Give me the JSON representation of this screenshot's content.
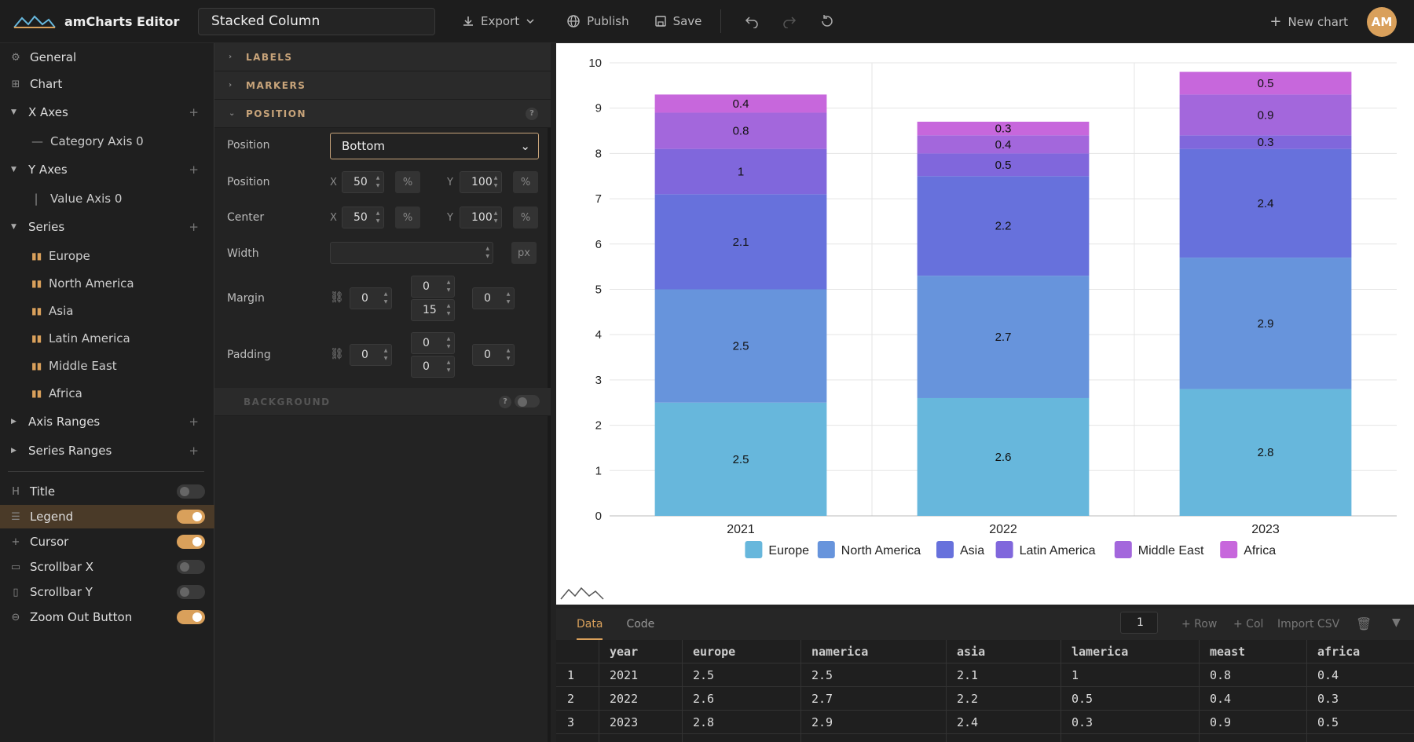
{
  "app": {
    "title": "amCharts Editor",
    "chart_name": "Stacked Column",
    "avatar": "AM"
  },
  "toolbar": {
    "export": "Export",
    "publish": "Publish",
    "save": "Save",
    "new_chart": "New chart"
  },
  "sidebar": {
    "general": "General",
    "chart": "Chart",
    "x_axes": "X Axes",
    "category_axis": "Category Axis 0",
    "y_axes": "Y Axes",
    "value_axis": "Value Axis 0",
    "series": "Series",
    "series_items": [
      "Europe",
      "North America",
      "Asia",
      "Latin America",
      "Middle East",
      "Africa"
    ],
    "axis_ranges": "Axis Ranges",
    "series_ranges": "Series Ranges",
    "toggles": [
      {
        "label": "Title",
        "on": false
      },
      {
        "label": "Legend",
        "on": true
      },
      {
        "label": "Cursor",
        "on": true
      },
      {
        "label": "Scrollbar X",
        "on": false
      },
      {
        "label": "Scrollbar Y",
        "on": false
      },
      {
        "label": "Zoom Out Button",
        "on": true
      }
    ]
  },
  "panel": {
    "labels": "LABELS",
    "markers": "MARKERS",
    "position_section": "POSITION",
    "position_label": "Position",
    "position_value": "Bottom",
    "position2_label": "Position",
    "center_label": "Center",
    "width_label": "Width",
    "margin_label": "Margin",
    "padding_label": "Padding",
    "x": "X",
    "y": "Y",
    "pct": "%",
    "px": "px",
    "pos_x": "50",
    "pos_y": "100",
    "center_x": "50",
    "center_y": "100",
    "margin": {
      "left": "0",
      "top": "0",
      "bottom": "15",
      "right": "0"
    },
    "padding": {
      "left": "0",
      "top": "0",
      "bottom": "0",
      "right": "0"
    },
    "background": "BACKGROUND",
    "help": "?"
  },
  "data_panel": {
    "tab_data": "Data",
    "tab_code": "Code",
    "rows_input": "1",
    "add_row": "+ Row",
    "add_col": "+ Col",
    "import_csv": "Import CSV"
  },
  "table": {
    "headers": [
      "year",
      "europe",
      "namerica",
      "asia",
      "lamerica",
      "meast",
      "africa"
    ],
    "rows": [
      [
        "1",
        "2021",
        "2.5",
        "2.5",
        "2.1",
        "1",
        "0.8",
        "0.4"
      ],
      [
        "2",
        "2022",
        "2.6",
        "2.7",
        "2.2",
        "0.5",
        "0.4",
        "0.3"
      ],
      [
        "3",
        "2023",
        "2.8",
        "2.9",
        "2.4",
        "0.3",
        "0.9",
        "0.5"
      ]
    ]
  },
  "colors": {
    "Europe": "#67b7dc",
    "North America": "#6794dc",
    "Asia": "#6771dc",
    "Latin America": "#8067dc",
    "Middle East": "#a367dc",
    "Africa": "#c767dc",
    "accent": "#d9a05b"
  },
  "chart_data": {
    "type": "bar",
    "stacked": true,
    "categories": [
      "2021",
      "2022",
      "2023"
    ],
    "series": [
      {
        "name": "Europe",
        "values": [
          2.5,
          2.6,
          2.8
        ]
      },
      {
        "name": "North America",
        "values": [
          2.5,
          2.7,
          2.9
        ]
      },
      {
        "name": "Asia",
        "values": [
          2.1,
          2.2,
          2.4
        ]
      },
      {
        "name": "Latin America",
        "values": [
          1,
          0.5,
          0.3
        ]
      },
      {
        "name": "Middle East",
        "values": [
          0.8,
          0.4,
          0.9
        ]
      },
      {
        "name": "Africa",
        "values": [
          0.4,
          0.3,
          0.5
        ]
      }
    ],
    "ylim": [
      0,
      10
    ],
    "yticks": [
      "0",
      "1",
      "2",
      "3",
      "4",
      "5",
      "6",
      "7",
      "8",
      "9",
      "10"
    ],
    "legend": "bottom"
  }
}
